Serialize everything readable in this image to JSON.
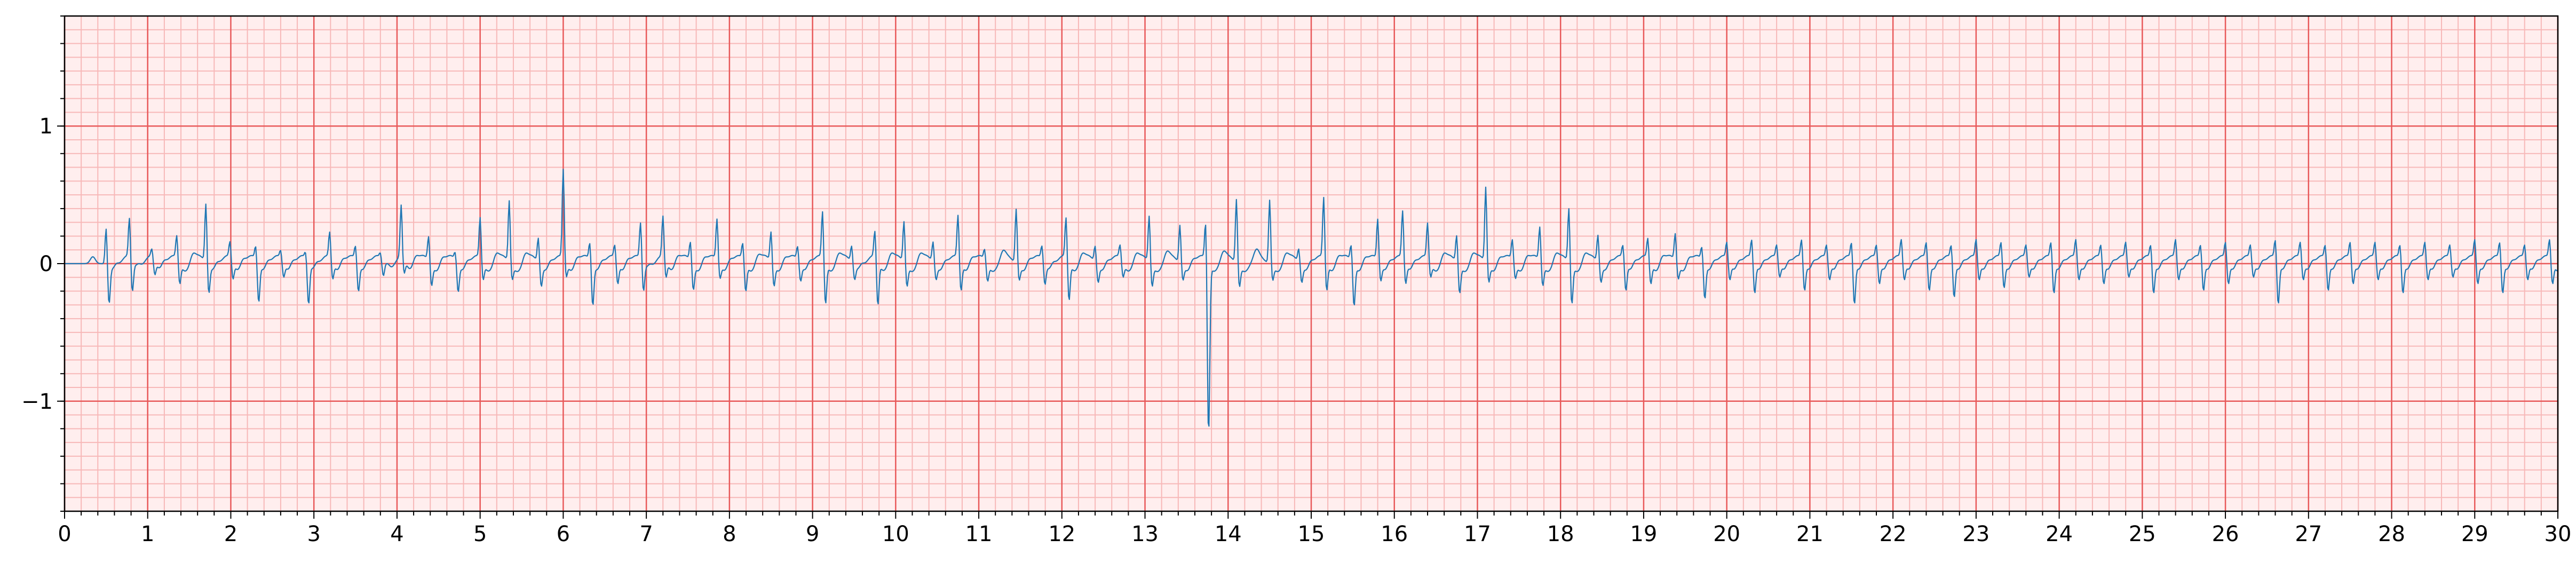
{
  "chart_data": {
    "type": "line",
    "title": "",
    "xlabel": "",
    "ylabel": "",
    "xlim": [
      0,
      30
    ],
    "ylim": [
      -1.8,
      1.8
    ],
    "x_ticks": [
      0,
      1,
      2,
      3,
      4,
      5,
      6,
      7,
      8,
      9,
      10,
      11,
      12,
      13,
      14,
      15,
      16,
      17,
      18,
      19,
      20,
      21,
      22,
      23,
      24,
      25,
      26,
      27,
      28,
      29,
      30
    ],
    "x_tick_labels": [
      "0",
      "1",
      "2",
      "3",
      "4",
      "5",
      "6",
      "7",
      "8",
      "9",
      "10",
      "11",
      "12",
      "13",
      "14",
      "15",
      "16",
      "17",
      "18",
      "19",
      "20",
      "21",
      "22",
      "23",
      "24",
      "25",
      "26",
      "27",
      "28",
      "29",
      "30"
    ],
    "y_ticks": [
      -1,
      0,
      1
    ],
    "y_tick_labels": [
      "−1",
      "0",
      "1"
    ],
    "grid": {
      "major": {
        "x_step": 1,
        "y_step": 1,
        "color": "#e8595a"
      },
      "minor": {
        "x_step": 0.2,
        "y_step": 0.1,
        "color": "#f7b8b8"
      }
    },
    "background": "#ffeeee",
    "line_color": "#1f77b4",
    "series": [
      {
        "beat_times": [
          0.5,
          0.78,
          1.05,
          1.35,
          1.7,
          1.99,
          2.3,
          2.6,
          2.9,
          3.19,
          3.5,
          3.8,
          4.05,
          4.38,
          4.7,
          5.0,
          5.35,
          5.7,
          6.0,
          6.32,
          6.62,
          6.93,
          7.2,
          7.53,
          7.85,
          8.16,
          8.5,
          8.82,
          9.12,
          9.47,
          9.75,
          10.1,
          10.45,
          10.75,
          11.07,
          11.45,
          11.76,
          12.05,
          12.4,
          12.7,
          13.05,
          13.42,
          13.73,
          14.1,
          14.5,
          14.85,
          15.15,
          15.48,
          15.8,
          16.1,
          16.4,
          16.75,
          17.1,
          17.42,
          17.75,
          18.1,
          18.45,
          18.75,
          19.05,
          19.38,
          19.7,
          20.0,
          20.3,
          20.6,
          20.9,
          21.2,
          21.5,
          21.8,
          22.1,
          22.4,
          22.7,
          23.0,
          23.3,
          23.6,
          23.9,
          24.2,
          24.5,
          24.8,
          25.1,
          25.4,
          25.7,
          26.0,
          26.3,
          26.6,
          26.9,
          27.2,
          27.5,
          27.8,
          28.1,
          28.4,
          28.7,
          29.0,
          29.3,
          29.6,
          29.9
        ],
        "r_amplitudes": [
          0.27,
          0.29,
          0.06,
          0.17,
          0.43,
          0.12,
          0.1,
          0.06,
          0.05,
          0.19,
          0.1,
          0.04,
          0.38,
          0.18,
          0.06,
          0.3,
          0.45,
          0.18,
          0.65,
          0.13,
          0.1,
          0.27,
          0.3,
          0.14,
          0.3,
          0.12,
          0.22,
          0.1,
          0.35,
          0.12,
          0.2,
          0.3,
          0.15,
          0.32,
          0.08,
          0.4,
          0.1,
          0.3,
          0.12,
          0.1,
          0.34,
          0.28,
          0.3,
          0.47,
          0.47,
          0.1,
          0.45,
          0.12,
          0.3,
          0.35,
          0.26,
          0.2,
          0.55,
          0.15,
          0.25,
          0.4,
          0.2,
          0.1,
          0.15,
          0.2,
          0.1,
          0.12,
          0.14,
          0.1,
          0.14,
          0.1,
          0.12,
          0.1,
          0.14,
          0.12,
          0.1,
          0.14,
          0.12,
          0.1,
          0.12,
          0.14,
          0.1,
          0.12,
          0.1,
          0.14,
          0.1,
          0.12,
          0.1,
          0.14,
          0.12,
          0.1,
          0.12,
          0.12,
          0.1,
          0.12,
          0.1,
          0.14,
          0.12,
          0.1,
          0.14
        ],
        "s_amplitudes": [
          -0.27,
          -0.22,
          -0.1,
          -0.15,
          -0.2,
          -0.12,
          -0.28,
          -0.1,
          -0.3,
          -0.12,
          -0.2,
          -0.1,
          -0.1,
          -0.15,
          -0.2,
          -0.12,
          -0.1,
          -0.15,
          -0.1,
          -0.3,
          -0.15,
          -0.2,
          -0.12,
          -0.18,
          -0.1,
          -0.2,
          -0.15,
          -0.12,
          -0.3,
          -0.1,
          -0.32,
          -0.15,
          -0.1,
          -0.2,
          -0.12,
          -0.1,
          -0.15,
          -0.28,
          -0.12,
          -0.1,
          -0.15,
          -0.1,
          -1.25,
          -0.15,
          -0.1,
          -0.12,
          -0.2,
          -0.3,
          -0.12,
          -0.15,
          -0.1,
          -0.2,
          -0.12,
          -0.1,
          -0.15,
          -0.28,
          -0.12,
          -0.2,
          -0.15,
          -0.1,
          -0.25,
          -0.12,
          -0.22,
          -0.1,
          -0.2,
          -0.12,
          -0.3,
          -0.15,
          -0.12,
          -0.2,
          -0.25,
          -0.12,
          -0.18,
          -0.1,
          -0.22,
          -0.12,
          -0.15,
          -0.1,
          -0.22,
          -0.12,
          -0.2,
          -0.15,
          -0.1,
          -0.3,
          -0.12,
          -0.2,
          -0.15,
          -0.12,
          -0.22,
          -0.12,
          -0.1,
          -0.15,
          -0.22,
          -0.12,
          -0.15
        ],
        "baseline": 0.0,
        "sample_rate_hz": 100
      }
    ]
  }
}
